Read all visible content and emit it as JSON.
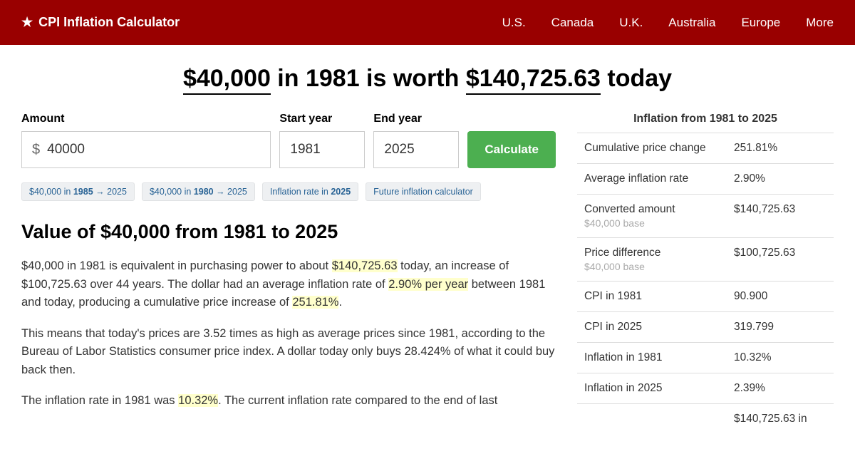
{
  "colors": {
    "header_bg": "#990000",
    "highlight_bg": "#ffffcc",
    "button_bg": "#4CAF50",
    "chip_bg": "#eef0f2",
    "chip_text": "#2a6496",
    "border": "#dddddd"
  },
  "header": {
    "brand": "CPI Inflation Calculator",
    "nav": [
      "U.S.",
      "Canada",
      "U.K.",
      "Australia",
      "Europe",
      "More"
    ]
  },
  "headline": {
    "amount_from": "$40,000",
    "mid1": " in 1981 is worth ",
    "amount_to": "$140,725.63",
    "mid2": " today"
  },
  "form": {
    "amount_label": "Amount",
    "amount_prefix": "$",
    "amount_value": "40000",
    "start_label": "Start year",
    "start_value": "1981",
    "end_label": "End year",
    "end_value": "2025",
    "button": "Calculate"
  },
  "chips": [
    {
      "prefix": "$40,000 in ",
      "bold": "1985",
      "suffix": " → 2025"
    },
    {
      "prefix": "$40,000 in ",
      "bold": "1980",
      "suffix": " → 2025"
    },
    {
      "prefix": "Inflation rate in ",
      "bold": "2025",
      "suffix": ""
    },
    {
      "prefix": "Future inflation calculator",
      "bold": "",
      "suffix": ""
    }
  ],
  "section_title": "Value of $40,000 from 1981 to 2025",
  "para1": {
    "t1": "$40,000 in 1981 is equivalent in purchasing power to about ",
    "h1": "$140,725.63",
    "t2": " today, an increase of $100,725.63 over 44 years. The dollar had an average inflation rate of ",
    "h2": "2.90% per year",
    "t3": " between 1981 and today, producing a cumulative price increase of ",
    "h3": "251.81%",
    "t4": "."
  },
  "para2": "This means that today's prices are 3.52 times as high as average prices since 1981, according to the Bureau of Labor Statistics consumer price index. A dollar today only buys 28.424% of what it could buy back then.",
  "para3": {
    "t1": "The inflation rate in 1981 was ",
    "h1": "10.32%",
    "t2": ". The current inflation rate compared to the end of last"
  },
  "sidebar": {
    "title": "Inflation from 1981 to 2025",
    "rows": [
      {
        "label": "Cumulative price change",
        "sub": "",
        "value": "251.81%"
      },
      {
        "label": "Average inflation rate",
        "sub": "",
        "value": "2.90%"
      },
      {
        "label": "Converted amount",
        "sub": "$40,000 base",
        "value": "$140,725.63"
      },
      {
        "label": "Price difference",
        "sub": "$40,000 base",
        "value": "$100,725.63"
      },
      {
        "label": "CPI in 1981",
        "sub": "",
        "value": "90.900"
      },
      {
        "label": "CPI in 2025",
        "sub": "",
        "value": "319.799"
      },
      {
        "label": "Inflation in 1981",
        "sub": "",
        "value": "10.32%"
      },
      {
        "label": "Inflation in 2025",
        "sub": "",
        "value": "2.39%"
      },
      {
        "label": "",
        "sub": "",
        "value": "$140,725.63 in"
      }
    ]
  }
}
